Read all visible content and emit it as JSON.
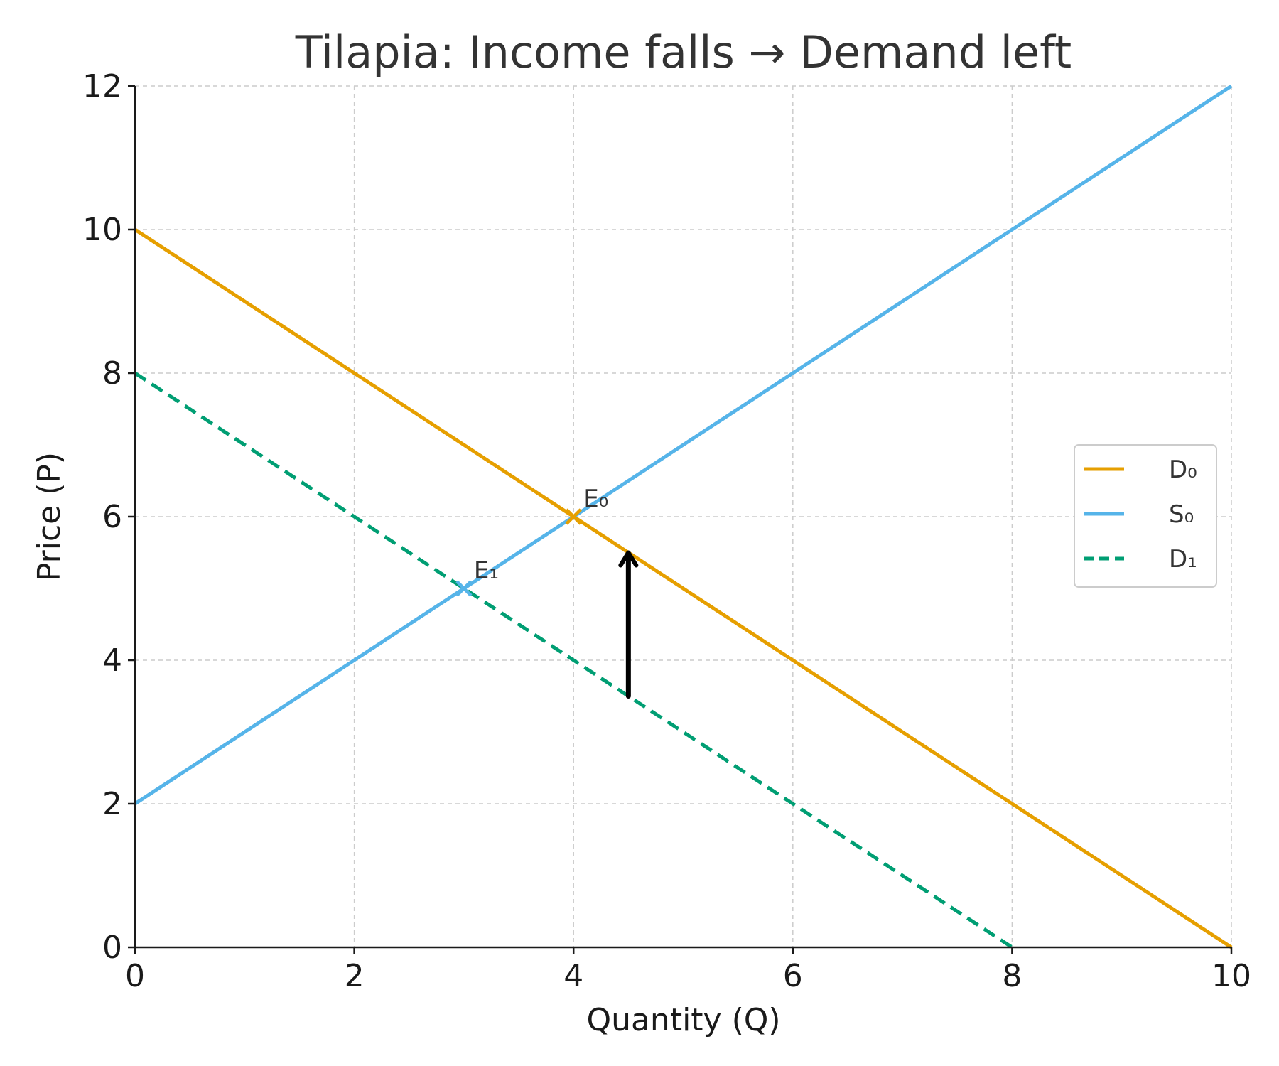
{
  "chart_data": {
    "type": "line",
    "title": "Tilapia: Income falls → Demand left",
    "xlabel": "Quantity (Q)",
    "ylabel": "Price (P)",
    "xlim": [
      0,
      10
    ],
    "ylim": [
      0,
      12
    ],
    "xticks": [
      "0",
      "2",
      "4",
      "6",
      "8",
      "10"
    ],
    "yticks": [
      "0",
      "2",
      "4",
      "6",
      "8",
      "10",
      "12"
    ],
    "grid": true,
    "legend_position": "center-right",
    "series": [
      {
        "name": "D₀",
        "color": "#E69F00",
        "style": "solid",
        "x": [
          0,
          10
        ],
        "y": [
          10,
          0
        ]
      },
      {
        "name": "S₀",
        "color": "#56B4E9",
        "style": "solid",
        "x": [
          0,
          10
        ],
        "y": [
          2,
          12
        ]
      },
      {
        "name": "D₁",
        "color": "#009E73",
        "style": "dashed",
        "x": [
          0,
          8
        ],
        "y": [
          8,
          0
        ]
      }
    ],
    "points": [
      {
        "label": "E₀",
        "x": 4,
        "y": 6,
        "color": "#E69F00"
      },
      {
        "label": "E₁",
        "x": 3,
        "y": 5,
        "color": "#56B4E9"
      }
    ],
    "arrow": {
      "x": 4.5,
      "from_y": 3.5,
      "to_y": 5.5,
      "color": "#000000"
    }
  }
}
